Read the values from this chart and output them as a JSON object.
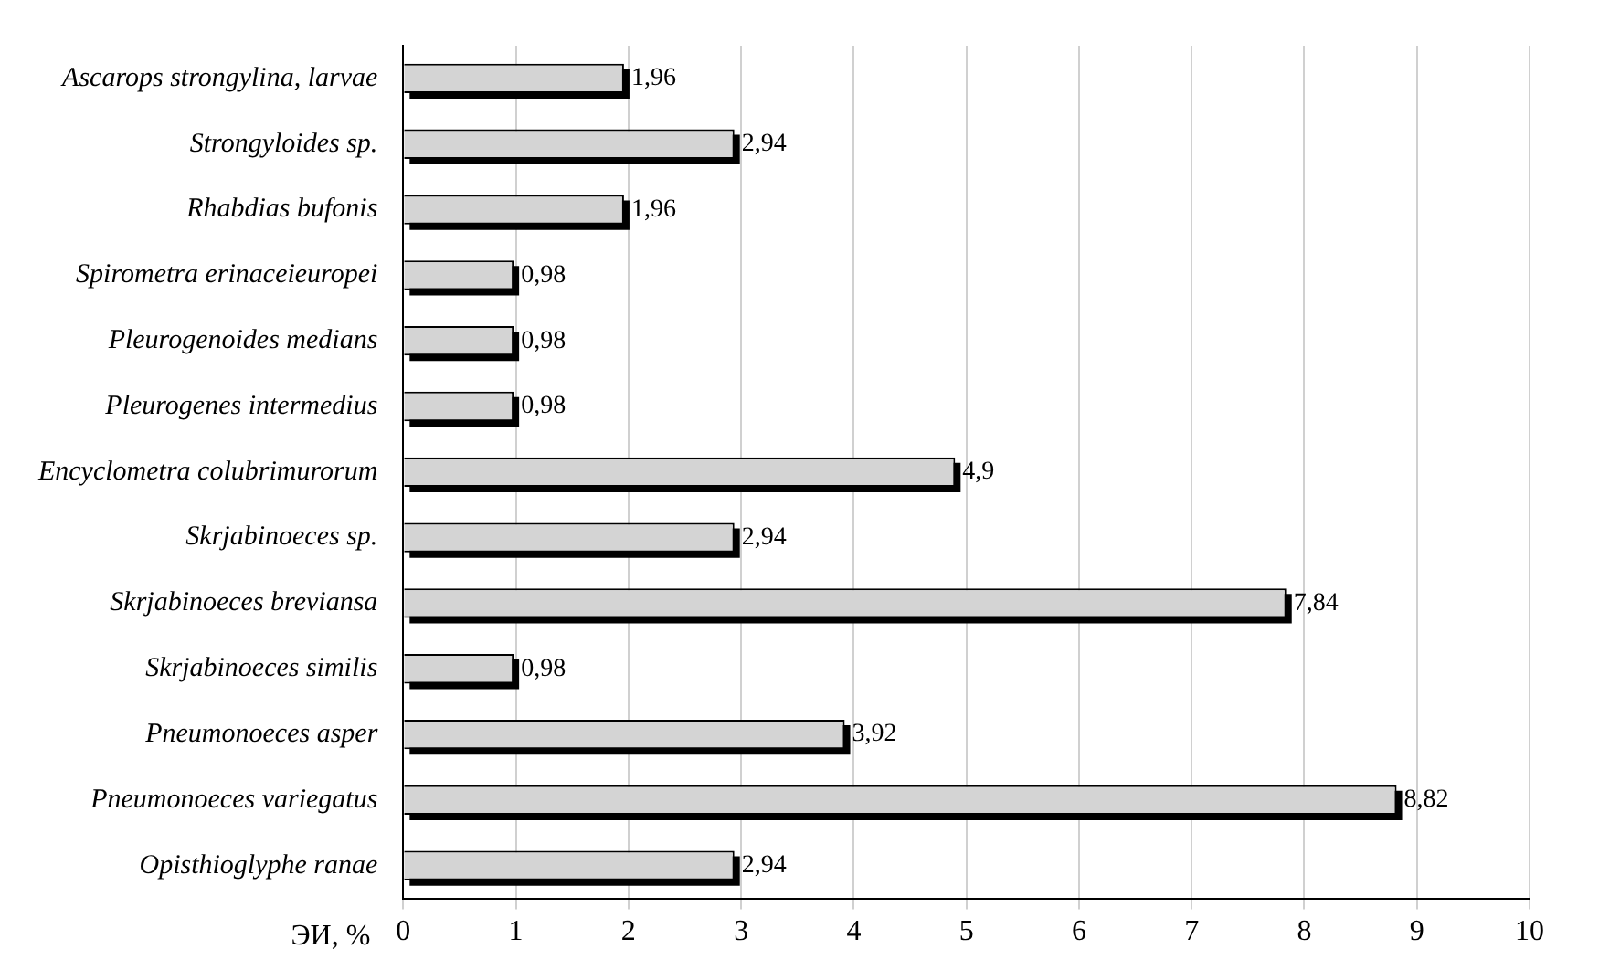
{
  "chart_data": {
    "type": "bar",
    "orientation": "horizontal",
    "xlabel": "ЭИ, %",
    "categories": [
      "Ascarops strongylina, larvae",
      "Strongyloides sp.",
      "Rhabdias bufonis",
      "Spirometra erinaceieuropei",
      "Pleurogenoides medians",
      "Pleurogenes intermedius",
      "Encyclometra colubrimurorum",
      "Skrjabinoeces sp.",
      "Skrjabinoeces breviansa",
      "Skrjabinoeces similis",
      "Pneumonoeces asper",
      "Pneumonoeces variegatus",
      "Opisthioglyphe ranae"
    ],
    "values": [
      1.96,
      2.94,
      1.96,
      0.98,
      0.98,
      0.98,
      4.9,
      2.94,
      7.84,
      0.98,
      3.92,
      8.82,
      2.94
    ],
    "value_labels": [
      "1,96",
      "2,94",
      "1,96",
      "0,98",
      "0,98",
      "0,98",
      "4,9",
      "2,94",
      "7,84",
      "0,98",
      "3,92",
      "8,82",
      "2,94"
    ],
    "color": "#d4d4d4",
    "xlim": [
      0,
      10
    ],
    "xticks": [
      0,
      1,
      2,
      3,
      4,
      5,
      6,
      7,
      8,
      9,
      10
    ],
    "grid": "x",
    "legend": false
  }
}
